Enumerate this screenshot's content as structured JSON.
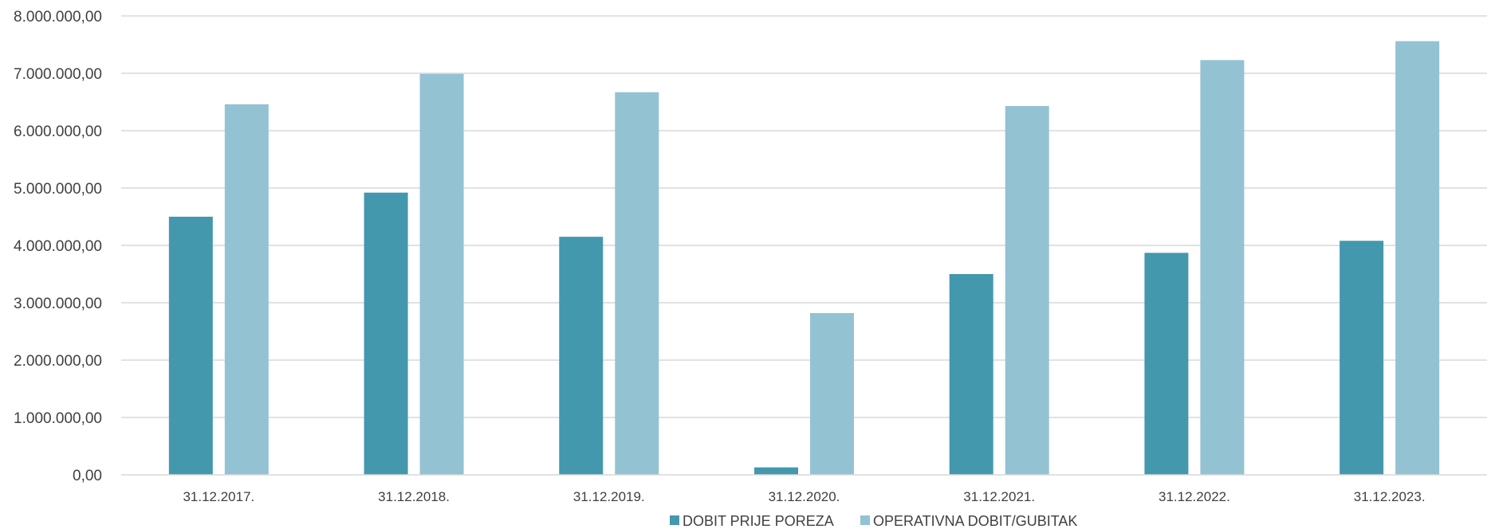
{
  "chart_data": {
    "type": "bar",
    "categories": [
      "31.12.2017.",
      "31.12.2018.",
      "31.12.2019.",
      "31.12.2020.",
      "31.12.2021.",
      "31.12.2022.",
      "31.12.2023."
    ],
    "series": [
      {
        "name": "DOBIT PRIJE POREZA",
        "color": "#4398ae",
        "values": [
          4500000,
          4920000,
          4150000,
          130000,
          3500000,
          3870000,
          4080000
        ]
      },
      {
        "name": "OPERATIVNA DOBIT/GUBITAK",
        "color": "#93c2d3",
        "values": [
          6460000,
          6990000,
          6670000,
          2820000,
          6430000,
          7230000,
          7560000
        ]
      }
    ],
    "ylim": [
      0,
      8000000
    ],
    "yticks": [
      0,
      1000000,
      2000000,
      3000000,
      4000000,
      5000000,
      6000000,
      7000000,
      8000000
    ],
    "ytick_labels": [
      "0,00",
      "1.000.000,00",
      "2.000.000,00",
      "3.000.000,00",
      "4.000.000,00",
      "5.000.000,00",
      "6.000.000,00",
      "7.000.000,00",
      "8.000.000,00"
    ],
    "grid": true,
    "legend_position": "bottom",
    "title": "",
    "xlabel": "",
    "ylabel": ""
  }
}
